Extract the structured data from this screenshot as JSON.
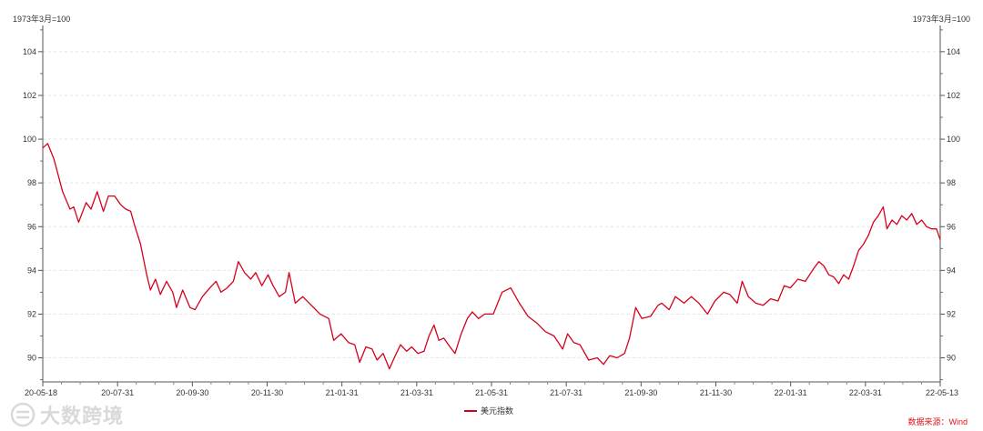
{
  "watermark": "大数跨境",
  "source_text": "数据来源：Wind",
  "source_color": "#e0101a",
  "chart_data": {
    "type": "line",
    "title": "",
    "y_unit_left": "1973年3月=100",
    "y_unit_right": "1973年3月=100",
    "x_tick_labels": [
      "20-05-18",
      "20-07-31",
      "20-09-30",
      "20-11-30",
      "21-01-31",
      "21-03-31",
      "21-05-31",
      "21-07-31",
      "21-09-30",
      "21-11-30",
      "22-01-31",
      "22-03-31",
      "22-05-13"
    ],
    "y_ticks": [
      90,
      92,
      94,
      96,
      98,
      100,
      102,
      104
    ],
    "ylim": [
      88.9,
      105.2
    ],
    "xlim": [
      "2020-05-18",
      "2022-05-13"
    ],
    "grid": "horizontal dashed",
    "legend_position": "bottom-center",
    "series": [
      {
        "name": "美元指数",
        "color": "#d7001c",
        "points": [
          [
            "2020-05-18",
            99.6
          ],
          [
            "2020-05-22",
            99.8
          ],
          [
            "2020-05-27",
            99.1
          ],
          [
            "2020-06-03",
            97.6
          ],
          [
            "2020-06-09",
            96.8
          ],
          [
            "2020-06-12",
            96.9
          ],
          [
            "2020-06-16",
            96.2
          ],
          [
            "2020-06-22",
            97.1
          ],
          [
            "2020-06-26",
            96.8
          ],
          [
            "2020-07-01",
            97.6
          ],
          [
            "2020-07-06",
            96.7
          ],
          [
            "2020-07-10",
            97.4
          ],
          [
            "2020-07-15",
            97.4
          ],
          [
            "2020-07-20",
            97.0
          ],
          [
            "2020-07-24",
            96.8
          ],
          [
            "2020-07-28",
            96.7
          ],
          [
            "2020-07-31",
            96.1
          ],
          [
            "2020-08-05",
            95.2
          ],
          [
            "2020-08-10",
            93.8
          ],
          [
            "2020-08-13",
            93.1
          ],
          [
            "2020-08-17",
            93.6
          ],
          [
            "2020-08-21",
            92.9
          ],
          [
            "2020-08-26",
            93.5
          ],
          [
            "2020-08-31",
            93.0
          ],
          [
            "2020-09-03",
            92.3
          ],
          [
            "2020-09-08",
            93.1
          ],
          [
            "2020-09-14",
            92.3
          ],
          [
            "2020-09-18",
            92.2
          ],
          [
            "2020-09-24",
            92.8
          ],
          [
            "2020-09-30",
            93.2
          ],
          [
            "2020-10-05",
            93.5
          ],
          [
            "2020-10-09",
            93.0
          ],
          [
            "2020-10-14",
            93.2
          ],
          [
            "2020-10-19",
            93.5
          ],
          [
            "2020-10-23",
            94.4
          ],
          [
            "2020-10-28",
            93.9
          ],
          [
            "2020-11-02",
            93.6
          ],
          [
            "2020-11-06",
            93.9
          ],
          [
            "2020-11-11",
            93.3
          ],
          [
            "2020-11-16",
            93.8
          ],
          [
            "2020-11-20",
            93.3
          ],
          [
            "2020-11-25",
            92.8
          ],
          [
            "2020-11-30",
            93.0
          ],
          [
            "2020-12-03",
            93.9
          ],
          [
            "2020-12-08",
            92.5
          ],
          [
            "2020-12-14",
            92.8
          ],
          [
            "2020-12-21",
            92.4
          ],
          [
            "2020-12-28",
            92.0
          ],
          [
            "2021-01-04",
            91.8
          ],
          [
            "2021-01-08",
            90.8
          ],
          [
            "2021-01-14",
            91.1
          ],
          [
            "2021-01-20",
            90.7
          ],
          [
            "2021-01-25",
            90.6
          ],
          [
            "2021-01-29",
            89.8
          ],
          [
            "2021-02-03",
            90.5
          ],
          [
            "2021-02-08",
            90.4
          ],
          [
            "2021-02-12",
            89.9
          ],
          [
            "2021-02-17",
            90.2
          ],
          [
            "2021-02-22",
            89.5
          ],
          [
            "2021-02-26",
            90.0
          ],
          [
            "2021-03-03",
            90.6
          ],
          [
            "2021-03-08",
            90.3
          ],
          [
            "2021-03-12",
            90.5
          ],
          [
            "2021-03-17",
            90.2
          ],
          [
            "2021-03-22",
            90.3
          ],
          [
            "2021-03-26",
            91.0
          ],
          [
            "2021-03-30",
            91.5
          ],
          [
            "2021-04-03",
            90.8
          ],
          [
            "2021-04-07",
            90.9
          ],
          [
            "2021-04-12",
            90.5
          ],
          [
            "2021-04-16",
            90.2
          ],
          [
            "2021-04-21",
            91.1
          ],
          [
            "2021-04-26",
            91.8
          ],
          [
            "2021-04-30",
            92.1
          ],
          [
            "2021-05-05",
            91.8
          ],
          [
            "2021-05-10",
            92.0
          ],
          [
            "2021-05-17",
            92.0
          ],
          [
            "2021-05-24",
            93.0
          ],
          [
            "2021-05-31",
            93.2
          ],
          [
            "2021-06-07",
            92.5
          ],
          [
            "2021-06-14",
            91.9
          ],
          [
            "2021-06-21",
            91.6
          ],
          [
            "2021-06-28",
            91.2
          ],
          [
            "2021-07-05",
            91.0
          ],
          [
            "2021-07-12",
            90.4
          ],
          [
            "2021-07-16",
            91.1
          ],
          [
            "2021-07-21",
            90.7
          ],
          [
            "2021-07-26",
            90.6
          ],
          [
            "2021-08-02",
            89.9
          ],
          [
            "2021-08-09",
            90.0
          ],
          [
            "2021-08-14",
            89.7
          ],
          [
            "2021-08-19",
            90.1
          ],
          [
            "2021-08-25",
            90.0
          ],
          [
            "2021-08-31",
            90.2
          ],
          [
            "2021-09-04",
            90.9
          ],
          [
            "2021-09-09",
            92.3
          ],
          [
            "2021-09-14",
            91.8
          ],
          [
            "2021-09-21",
            91.9
          ],
          [
            "2021-09-27",
            92.4
          ],
          [
            "2021-09-30",
            92.5
          ],
          [
            "2021-10-06",
            92.2
          ],
          [
            "2021-10-11",
            92.8
          ],
          [
            "2021-10-18",
            92.5
          ],
          [
            "2021-10-24",
            92.8
          ],
          [
            "2021-10-30",
            92.5
          ],
          [
            "2021-11-06",
            92.0
          ],
          [
            "2021-11-12",
            92.6
          ],
          [
            "2021-11-19",
            93.0
          ],
          [
            "2021-11-24",
            92.9
          ],
          [
            "2021-11-30",
            92.5
          ],
          [
            "2021-12-04",
            93.5
          ],
          [
            "2021-12-09",
            92.8
          ],
          [
            "2021-12-15",
            92.5
          ],
          [
            "2021-12-21",
            92.4
          ],
          [
            "2021-12-27",
            92.7
          ],
          [
            "2022-01-02",
            92.6
          ],
          [
            "2022-01-07",
            93.3
          ],
          [
            "2022-01-12",
            93.2
          ],
          [
            "2022-01-18",
            93.6
          ],
          [
            "2022-01-24",
            93.5
          ],
          [
            "2022-01-31",
            94.1
          ],
          [
            "2022-02-04",
            94.4
          ],
          [
            "2022-02-08",
            94.2
          ],
          [
            "2022-02-12",
            93.8
          ],
          [
            "2022-02-16",
            93.7
          ],
          [
            "2022-02-20",
            93.4
          ],
          [
            "2022-02-24",
            93.8
          ],
          [
            "2022-02-28",
            93.6
          ],
          [
            "2022-03-04",
            94.2
          ],
          [
            "2022-03-08",
            94.9
          ],
          [
            "2022-03-12",
            95.2
          ],
          [
            "2022-03-16",
            95.6
          ],
          [
            "2022-03-20",
            96.2
          ],
          [
            "2022-03-24",
            96.5
          ],
          [
            "2022-03-28",
            96.9
          ],
          [
            "2022-03-31",
            95.9
          ],
          [
            "2022-04-04",
            96.3
          ],
          [
            "2022-04-08",
            96.1
          ],
          [
            "2022-04-12",
            96.5
          ],
          [
            "2022-04-16",
            96.3
          ],
          [
            "2022-04-20",
            96.6
          ],
          [
            "2022-04-24",
            96.1
          ],
          [
            "2022-04-28",
            96.3
          ],
          [
            "2022-05-02",
            96.0
          ],
          [
            "2022-05-06",
            95.9
          ],
          [
            "2022-05-10",
            95.9
          ],
          [
            "2022-05-13",
            95.4
          ]
        ]
      }
    ]
  }
}
